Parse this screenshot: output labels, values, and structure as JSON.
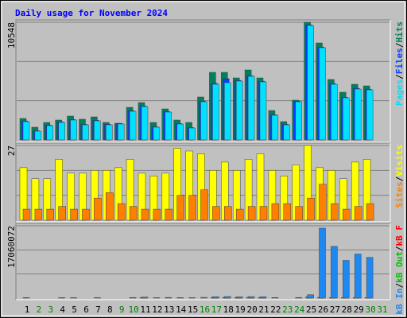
{
  "chart_data": [
    {
      "type": "bar",
      "title": "Daily usage for November 2024",
      "categories": [
        "1",
        "2",
        "3",
        "4",
        "5",
        "6",
        "7",
        "8",
        "9",
        "10",
        "11",
        "12",
        "13",
        "14",
        "15",
        "16",
        "17",
        "18",
        "19",
        "20",
        "21",
        "22",
        "23",
        "24",
        "25",
        "26",
        "27",
        "28",
        "29",
        "30",
        "31"
      ],
      "ylim": [
        0,
        10548
      ],
      "yticks": [
        10548
      ],
      "separator": "/",
      "series": [
        {
          "name": "Hits",
          "color": "#00805c",
          "values": [
            1924,
            1140,
            1568,
            1782,
            2138,
            1853,
            2067,
            1568,
            1497,
            2922,
            3350,
            1568,
            2780,
            1782,
            1568,
            3849,
            6058,
            6058,
            5559,
            6272,
            5559,
            2637,
            1639,
            3563,
            10548,
            8695,
            5417,
            4276,
            4989,
            4846,
            0
          ]
        },
        {
          "name": "Files",
          "color": "#0040ff",
          "values": [
            1700,
            820,
            1330,
            1620,
            1830,
            1400,
            1760,
            1400,
            1470,
            2620,
            3050,
            1180,
            2540,
            1470,
            1110,
            3480,
            5080,
            5490,
            5330,
            5760,
            5260,
            2260,
            1400,
            3470,
            10320,
            8330,
            5050,
            3830,
            4620,
            4550,
            0
          ]
        },
        {
          "name": "Pages",
          "color": "#00e0ff",
          "values": [
            1639,
            784,
            1283,
            1568,
            1782,
            1354,
            1710,
            1354,
            1425,
            2566,
            2993,
            1140,
            2494,
            1425,
            1069,
            3421,
            4989,
            5132,
            5274,
            5702,
            5203,
            2209,
            1354,
            3421,
            10263,
            8268,
            4989,
            3777,
            4561,
            4490,
            0
          ]
        }
      ]
    },
    {
      "type": "bar",
      "categories": [
        "1",
        "2",
        "3",
        "4",
        "5",
        "6",
        "7",
        "8",
        "9",
        "10",
        "11",
        "12",
        "13",
        "14",
        "15",
        "16",
        "17",
        "18",
        "19",
        "20",
        "21",
        "22",
        "23",
        "24",
        "25",
        "26",
        "27",
        "28",
        "29",
        "30",
        "31"
      ],
      "ylim": [
        0,
        27
      ],
      "yticks": [
        27
      ],
      "separator": "/",
      "series": [
        {
          "name": "Visits",
          "color": "#ffff00",
          "values": [
            19,
            15,
            15,
            22,
            17,
            17,
            18,
            18,
            19,
            22,
            17,
            16,
            17,
            26,
            25,
            24,
            18,
            21,
            18,
            22,
            24,
            18,
            16,
            20,
            27,
            19,
            18,
            15,
            21,
            22,
            0
          ]
        },
        {
          "name": "Sites",
          "color": "#ff8000",
          "values": [
            4,
            4,
            4,
            5,
            4,
            4,
            8,
            10,
            6,
            5,
            4,
            4,
            4,
            9,
            9,
            11,
            5,
            5,
            4,
            5,
            5,
            6,
            6,
            5,
            8,
            13,
            6,
            4,
            5,
            6,
            0
          ]
        }
      ]
    },
    {
      "type": "bar",
      "categories": [
        "1",
        "2",
        "3",
        "4",
        "5",
        "6",
        "7",
        "8",
        "9",
        "10",
        "11",
        "12",
        "13",
        "14",
        "15",
        "16",
        "17",
        "18",
        "19",
        "20",
        "21",
        "22",
        "23",
        "24",
        "25",
        "26",
        "27",
        "28",
        "29",
        "30",
        "31"
      ],
      "category_colors": [
        "#000000",
        "#008000",
        "#008000",
        "#000000",
        "#000000",
        "#000000",
        "#000000",
        "#000000",
        "#008000",
        "#008000",
        "#000000",
        "#000000",
        "#000000",
        "#000000",
        "#000000",
        "#008000",
        "#008000",
        "#000000",
        "#000000",
        "#000000",
        "#000000",
        "#000000",
        "#008000",
        "#008000",
        "#000000",
        "#000000",
        "#000000",
        "#000000",
        "#000000",
        "#008000",
        "#008000"
      ],
      "ylim": [
        0,
        17060072
      ],
      "yticks": [
        17060072
      ],
      "separator": "/",
      "series": [
        {
          "name": "kB F",
          "color": "#ff0000",
          "values": [
            0,
            0,
            0,
            0,
            0,
            0,
            0,
            0,
            0,
            0,
            0,
            0,
            0,
            0,
            0,
            0,
            0,
            0,
            0,
            0,
            0,
            0,
            0,
            0,
            0,
            0,
            0,
            0,
            0,
            0,
            0
          ]
        },
        {
          "name": "kB Out",
          "color": "#00c000",
          "values": [
            60000,
            40000,
            45000,
            55000,
            50000,
            45000,
            55000,
            45000,
            40000,
            75000,
            125000,
            50000,
            80000,
            60000,
            50000,
            90000,
            175000,
            190000,
            150000,
            180000,
            160000,
            70000,
            45000,
            75000,
            300000,
            200000,
            150000,
            110000,
            130000,
            120000,
            0
          ]
        },
        {
          "name": "kB In",
          "color": "#1e88f0",
          "values": [
            120000,
            80000,
            90000,
            110000,
            100000,
            90000,
            110000,
            90000,
            80000,
            150000,
            250000,
            100000,
            160000,
            120000,
            100000,
            180000,
            350000,
            380000,
            300000,
            360000,
            320000,
            140000,
            90000,
            150000,
            800000,
            16500000,
            12200000,
            8900000,
            10400000,
            9600000,
            0
          ]
        }
      ]
    }
  ]
}
